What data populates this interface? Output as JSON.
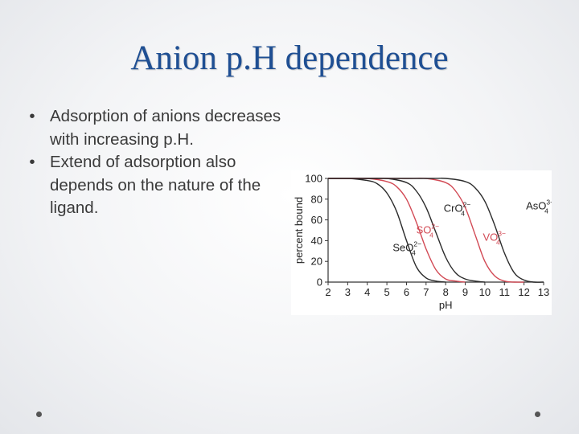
{
  "slide": {
    "title": "Anion p.H dependence",
    "bullets": [
      "Adsorption of anions decreases with increasing p.H.",
      "Extend of adsorption also depends on the nature of the ligand."
    ],
    "bullet_glyph": "•"
  },
  "colors": {
    "title": "#1f4f93",
    "text": "#3a3a3a",
    "black_curve": "#2b2b2b",
    "red_curve": "#d24a55",
    "red_label": "#d24a55"
  },
  "chart_data": {
    "type": "line",
    "title": "",
    "xlabel": "pH",
    "ylabel": "percent bound",
    "xlim": [
      2,
      13
    ],
    "ylim": [
      0,
      100
    ],
    "x_ticks": [
      2,
      3,
      4,
      5,
      6,
      7,
      8,
      9,
      10,
      11,
      12,
      13
    ],
    "y_ticks": [
      0,
      20,
      40,
      60,
      80,
      100
    ],
    "grid": false,
    "legend": "none (curves labeled inline)",
    "series": [
      {
        "name": "SeO4 2-",
        "label_main": "SeO",
        "label_sub": "4",
        "label_sup": "2−",
        "color": "black",
        "x": [
          2,
          3,
          4,
          4.5,
          5,
          5.5,
          6,
          6.5,
          7,
          7.5,
          8
        ],
        "y": [
          100,
          100,
          98,
          95,
          86,
          68,
          40,
          15,
          4,
          1,
          0
        ]
      },
      {
        "name": "SO4 2-",
        "label_main": "SO",
        "label_sub": "4",
        "label_sup": "2−",
        "color": "red",
        "x": [
          2,
          3,
          4,
          5,
          5.5,
          6,
          6.5,
          7,
          7.5,
          8,
          8.5,
          9
        ],
        "y": [
          100,
          100,
          100,
          97,
          92,
          80,
          58,
          32,
          12,
          3,
          1,
          0
        ]
      },
      {
        "name": "CrO4 2-",
        "label_main": "CrO",
        "label_sub": "4",
        "label_sup": "2−",
        "color": "black",
        "x": [
          2,
          4,
          5,
          6,
          6.5,
          7,
          7.5,
          8,
          8.5,
          9,
          9.5,
          10
        ],
        "y": [
          100,
          100,
          100,
          96,
          88,
          72,
          48,
          24,
          9,
          3,
          1,
          0
        ]
      },
      {
        "name": "VO4 3-",
        "label_main": "VO",
        "label_sub": "4",
        "label_sup": "3−",
        "color": "red",
        "x": [
          2,
          6,
          7,
          8,
          8.5,
          9,
          9.5,
          10,
          10.5,
          11,
          11.5,
          12
        ],
        "y": [
          100,
          100,
          100,
          96,
          88,
          72,
          46,
          20,
          6,
          1,
          0,
          0
        ]
      },
      {
        "name": "AsO4 3-",
        "label_main": "AsO",
        "label_sub": "4",
        "label_sup": "3−",
        "color": "black",
        "x": [
          2,
          7,
          8,
          9,
          9.5,
          10,
          10.5,
          11,
          11.5,
          12,
          12.5,
          13
        ],
        "y": [
          100,
          100,
          100,
          97,
          91,
          78,
          55,
          28,
          9,
          2,
          0,
          0
        ]
      }
    ]
  }
}
